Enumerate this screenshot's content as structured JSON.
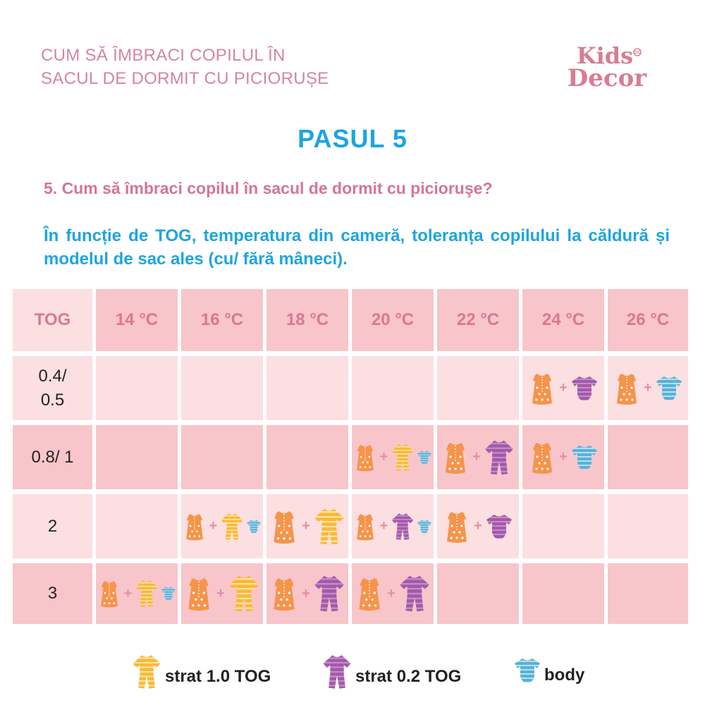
{
  "header": {
    "title_line1": "CUM SĂ ÎMBRACI COPILUL ÎN",
    "title_line2": "SACUL DE DORMIT CU PICIORUȘE",
    "logo_line1": "Kids",
    "logo_line2": "Decor"
  },
  "step_title": "PASUL 5",
  "question": "5. Cum să îmbraci copilul în sacul de dormit cu picioruşe?",
  "intro": "În funcție de TOG, temperatura din cameră, toleranța copilului la căldură și modelul de sac ales (cu/ fără mâneci).",
  "table": {
    "corner_label": "TOG",
    "columns": [
      "14 °C",
      "16 °C",
      "18 °C",
      "20 °C",
      "22 °C",
      "24 °C",
      "26 °C"
    ],
    "rows": [
      {
        "tog_line1": "0.4/",
        "tog_line2": "0.5",
        "cells": [
          "",
          "",
          "",
          "",
          "",
          "sac-fara-maneci+body-mov",
          "sac-fara-maneci+body-albastru"
        ]
      },
      {
        "tog_line1": "0.8/ 1",
        "tog_line2": "",
        "cells": [
          "",
          "",
          "",
          "sac+strat-1.0-tog+body",
          "sac+strat-0.2-tog",
          "sac+body",
          ""
        ]
      },
      {
        "tog_line1": "2",
        "tog_line2": "",
        "cells": [
          "",
          "sac+strat-1.0-tog+body",
          "sac+strat-1.0-tog",
          "sac+strat-0.2-tog+body",
          "sac+body-mov",
          "",
          ""
        ]
      },
      {
        "tog_line1": "3",
        "tog_line2": "",
        "cells": [
          "sac+strat-1.0-tog+body",
          "sac+strat-1.0-tog",
          "sac+strat-0.2-tog",
          "sac+strat-0.2-tog",
          "",
          "",
          ""
        ]
      }
    ]
  },
  "legend": [
    {
      "label": "strat 1.0 TOG",
      "icon": "yellow-sleepsuit-icon"
    },
    {
      "label": "strat 0.2 TOG",
      "icon": "purple-sleepsuit-icon"
    },
    {
      "label": "body",
      "icon": "blue-bodysuit-icon"
    }
  ],
  "colors": {
    "accent_blue": "#1ea5df",
    "accent_pink": "#d47693",
    "cell_light": "#fbdfe1",
    "cell_dark": "#f8c5cb",
    "sack_orange": "#f5944a",
    "yellow_suit": "#f8b935",
    "purple_suit": "#a15aa8",
    "blue_body": "#5ab1d8"
  }
}
